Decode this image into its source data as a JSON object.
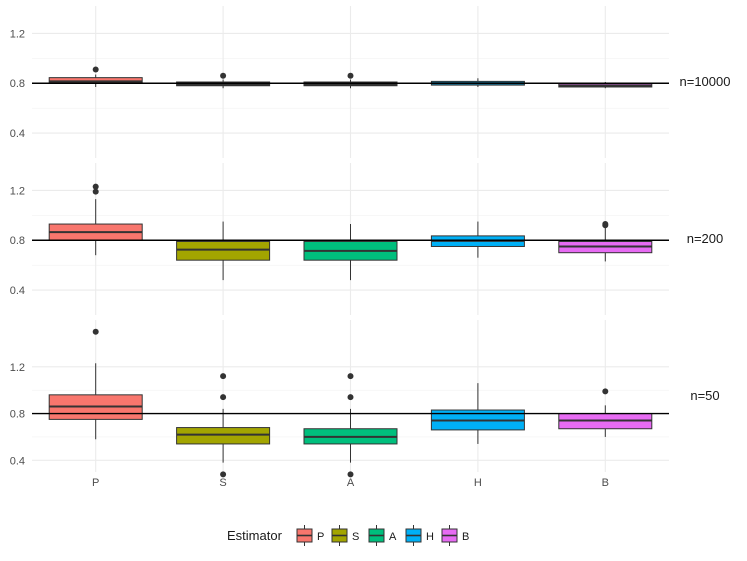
{
  "chart_data": {
    "type": "boxplot",
    "layout": "faceted-rows",
    "categories": [
      "P",
      "S",
      "A",
      "H",
      "B"
    ],
    "colors": {
      "P": "#F8766D",
      "S": "#A3A500",
      "A": "#00BF7D",
      "H": "#00B0F6",
      "B": "#E76BF3"
    },
    "y_ticks": [
      0.4,
      0.8,
      1.2
    ],
    "y_tick_labels": [
      "0.4",
      "0.8",
      "1.2"
    ],
    "reference_line": 0.8,
    "grid": true,
    "legend": {
      "title": "Estimator",
      "labels": [
        "P",
        "S",
        "A",
        "H",
        "B"
      ],
      "placement": "bottom"
    },
    "facets": [
      {
        "label": "n=10000",
        "ylim": [
          0.2,
          1.42
        ],
        "boxes": [
          {
            "cat": "P",
            "q1": 0.805,
            "median": 0.815,
            "q3": 0.845,
            "wlo": 0.77,
            "whi": 0.87,
            "outliers": [
              0.91
            ]
          },
          {
            "cat": "S",
            "q1": 0.78,
            "median": 0.79,
            "q3": 0.81,
            "wlo": 0.76,
            "whi": 0.83,
            "outliers": [
              0.86
            ]
          },
          {
            "cat": "A",
            "q1": 0.78,
            "median": 0.79,
            "q3": 0.81,
            "wlo": 0.76,
            "whi": 0.83,
            "outliers": [
              0.86
            ]
          },
          {
            "cat": "H",
            "q1": 0.785,
            "median": 0.8,
            "q3": 0.815,
            "wlo": 0.77,
            "whi": 0.84,
            "outliers": []
          },
          {
            "cat": "B",
            "q1": 0.77,
            "median": 0.78,
            "q3": 0.795,
            "wlo": 0.76,
            "whi": 0.81,
            "outliers": []
          }
        ]
      },
      {
        "label": "n=200",
        "ylim": [
          0.2,
          1.42
        ],
        "boxes": [
          {
            "cat": "P",
            "q1": 0.8,
            "median": 0.865,
            "q3": 0.93,
            "wlo": 0.68,
            "whi": 1.13,
            "outliers": [
              1.19,
              1.23
            ]
          },
          {
            "cat": "S",
            "q1": 0.64,
            "median": 0.725,
            "q3": 0.79,
            "wlo": 0.48,
            "whi": 0.95,
            "outliers": []
          },
          {
            "cat": "A",
            "q1": 0.64,
            "median": 0.715,
            "q3": 0.79,
            "wlo": 0.48,
            "whi": 0.93,
            "outliers": []
          },
          {
            "cat": "H",
            "q1": 0.75,
            "median": 0.795,
            "q3": 0.835,
            "wlo": 0.66,
            "whi": 0.95,
            "outliers": []
          },
          {
            "cat": "B",
            "q1": 0.7,
            "median": 0.75,
            "q3": 0.79,
            "wlo": 0.63,
            "whi": 0.9,
            "outliers": [
              0.92,
              0.93
            ]
          }
        ]
      },
      {
        "label": "n=50",
        "ylim": [
          0.3,
          1.6
        ],
        "boxes": [
          {
            "cat": "P",
            "q1": 0.75,
            "median": 0.86,
            "q3": 0.96,
            "wlo": 0.58,
            "whi": 1.23,
            "outliers": [
              1.5
            ]
          },
          {
            "cat": "S",
            "q1": 0.54,
            "median": 0.62,
            "q3": 0.68,
            "wlo": 0.38,
            "whi": 0.84,
            "outliers": [
              0.28,
              0.94,
              1.12
            ]
          },
          {
            "cat": "A",
            "q1": 0.54,
            "median": 0.6,
            "q3": 0.67,
            "wlo": 0.38,
            "whi": 0.84,
            "outliers": [
              0.28,
              0.94,
              1.12
            ]
          },
          {
            "cat": "H",
            "q1": 0.66,
            "median": 0.74,
            "q3": 0.83,
            "wlo": 0.54,
            "whi": 1.06,
            "outliers": []
          },
          {
            "cat": "B",
            "q1": 0.67,
            "median": 0.74,
            "q3": 0.8,
            "wlo": 0.6,
            "whi": 0.87,
            "outliers": [
              0.99
            ]
          }
        ]
      }
    ]
  }
}
